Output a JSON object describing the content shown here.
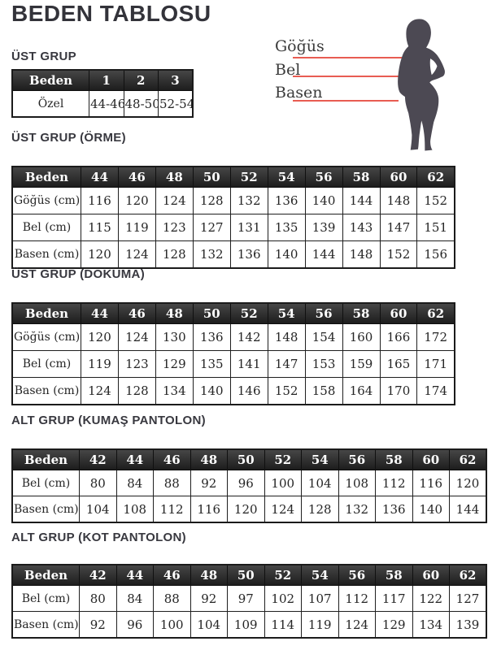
{
  "page": {
    "title": "BEDEN TABLOSU"
  },
  "colors": {
    "accent_line": "#e85c52",
    "silhouette": "#4c4953",
    "header_bg_top": "#464646",
    "header_bg_bottom": "#1d1d1d",
    "heading_text": "#38383f"
  },
  "diagram": {
    "silhouette_color": "#4c4953",
    "labels": {
      "chest": "Göğüs",
      "waist": "Bel",
      "hip": "Basen"
    }
  },
  "tables": {
    "ozel": {
      "heading": "ÜST GRUP",
      "header": [
        "Beden",
        "1",
        "2",
        "3"
      ],
      "rows": [
        {
          "label": "Özel",
          "values": [
            "44-46",
            "48-50",
            "52-54"
          ]
        }
      ]
    },
    "orme": {
      "heading": "ÜST GRUP (ÖRME)",
      "header": [
        "Beden",
        "44",
        "46",
        "48",
        "50",
        "52",
        "54",
        "56",
        "58",
        "60",
        "62"
      ],
      "rows": [
        {
          "label": "Göğüs (cm)",
          "values": [
            "116",
            "120",
            "124",
            "128",
            "132",
            "136",
            "140",
            "144",
            "148",
            "152"
          ]
        },
        {
          "label": "Bel (cm)",
          "values": [
            "115",
            "119",
            "123",
            "127",
            "131",
            "135",
            "139",
            "143",
            "147",
            "151"
          ]
        },
        {
          "label": "Basen (cm)",
          "values": [
            "120",
            "124",
            "128",
            "132",
            "136",
            "140",
            "144",
            "148",
            "152",
            "156"
          ]
        }
      ]
    },
    "dokuma": {
      "heading": "ÜST GRUP (DOKUMA)",
      "header": [
        "Beden",
        "44",
        "46",
        "48",
        "50",
        "52",
        "54",
        "56",
        "58",
        "60",
        "62"
      ],
      "rows": [
        {
          "label": "Göğüs (cm)",
          "values": [
            "120",
            "124",
            "130",
            "136",
            "142",
            "148",
            "154",
            "160",
            "166",
            "172"
          ]
        },
        {
          "label": "Bel (cm)",
          "values": [
            "119",
            "123",
            "129",
            "135",
            "141",
            "147",
            "153",
            "159",
            "165",
            "171"
          ]
        },
        {
          "label": "Basen (cm)",
          "values": [
            "124",
            "128",
            "134",
            "140",
            "146",
            "152",
            "158",
            "164",
            "170",
            "174"
          ]
        }
      ]
    },
    "kumas": {
      "heading": "ALT GRUP (KUMAŞ PANTOLON)",
      "header": [
        "Beden",
        "42",
        "44",
        "46",
        "48",
        "50",
        "52",
        "54",
        "56",
        "58",
        "60",
        "62"
      ],
      "rows": [
        {
          "label": "Bel (cm)",
          "values": [
            "80",
            "84",
            "88",
            "92",
            "96",
            "100",
            "104",
            "108",
            "112",
            "116",
            "120"
          ]
        },
        {
          "label": "Basen (cm)",
          "values": [
            "104",
            "108",
            "112",
            "116",
            "120",
            "124",
            "128",
            "132",
            "136",
            "140",
            "144"
          ]
        }
      ]
    },
    "kot": {
      "heading": "ALT GRUP (KOT PANTOLON)",
      "header": [
        "Beden",
        "42",
        "44",
        "46",
        "48",
        "50",
        "52",
        "54",
        "56",
        "58",
        "60",
        "62"
      ],
      "rows": [
        {
          "label": "Bel (cm)",
          "values": [
            "80",
            "84",
            "88",
            "92",
            "97",
            "102",
            "107",
            "112",
            "117",
            "122",
            "127"
          ]
        },
        {
          "label": "Basen (cm)",
          "values": [
            "92",
            "96",
            "100",
            "104",
            "109",
            "114",
            "119",
            "124",
            "129",
            "134",
            "139"
          ]
        }
      ]
    }
  }
}
